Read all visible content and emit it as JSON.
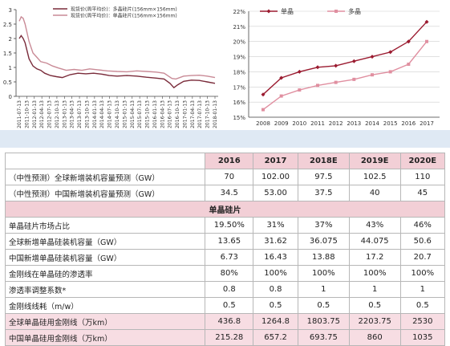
{
  "charts": [
    {
      "type": "line",
      "series": [
        {
          "name": "现货价(周平均价)：多晶硅片(156mm×156mm)",
          "color": "#7a2b3a"
        },
        {
          "name": "现货价(周平均价)：单晶硅片(156mm×156mm)",
          "color": "#c98a96"
        }
      ],
      "x": [
        "2011-07-13",
        "2011-10-13",
        "2012-01-13",
        "2012-04-13",
        "2012-07-13",
        "2012-10-13",
        "2013-01-13",
        "2013-04-13",
        "2013-07-13",
        "2013-10-13",
        "2014-01-13",
        "2014-04-13",
        "2014-07-13",
        "2014-10-13",
        "2015-01-13",
        "2015-04-13",
        "2015-07-13",
        "2015-10-13",
        "2016-01-13",
        "2016-04-13",
        "2016-07-13",
        "2016-10-13",
        "2017-01-13",
        "2017-04-13",
        "2017-07-13",
        "2017-10-13",
        "2018-01-13"
      ],
      "ylabels": [
        "0",
        "0.5",
        "1",
        "1.5",
        "2",
        "2.5",
        "3"
      ],
      "ylim": [
        0,
        3
      ]
    },
    {
      "type": "line",
      "x": [
        "2008",
        "2009",
        "2010",
        "2011",
        "2012",
        "2013",
        "2014",
        "2015",
        "2016",
        "2017"
      ],
      "series": [
        {
          "name": "单晶",
          "color": "#9b1b30",
          "values": [
            16.5,
            17.6,
            18.0,
            18.3,
            18.4,
            18.7,
            19.0,
            19.3,
            20.0,
            21.3
          ]
        },
        {
          "name": "多晶",
          "color": "#e08fa0",
          "values": [
            15.5,
            16.4,
            16.8,
            17.1,
            17.3,
            17.5,
            17.8,
            18.0,
            18.5,
            20.0
          ]
        }
      ],
      "ylabels": [
        "15%",
        "16%",
        "17%",
        "18%",
        "19%",
        "20%",
        "21%",
        "22%"
      ],
      "ylim": [
        15,
        22
      ]
    }
  ],
  "table": {
    "header": [
      "",
      "2016",
      "2017",
      "2018E",
      "2019E",
      "2020E"
    ],
    "rows": [
      {
        "label": "（中性预测）全球新增装机容量预测（GW）",
        "values": [
          "70",
          "102.00",
          "97.5",
          "102.5",
          "110"
        ],
        "style": "plain"
      },
      {
        "label": "（中性预测）中国新增装机容量预测（GW）",
        "values": [
          "34.5",
          "53.00",
          "37.5",
          "40",
          "45"
        ],
        "style": "plain"
      },
      {
        "label": "单晶硅片",
        "style": "section"
      },
      {
        "label": "单晶硅片市场占比",
        "values": [
          "19.50%",
          "31%",
          "37%",
          "43%",
          "46%"
        ],
        "style": "plain"
      },
      {
        "label": "全球新增单晶硅装机容量（GW）",
        "values": [
          "13.65",
          "31.62",
          "36.075",
          "44.075",
          "50.6"
        ],
        "style": "plain"
      },
      {
        "label": "中国新增单晶硅装机容量（GW）",
        "values": [
          "6.73",
          "16.43",
          "13.88",
          "17.2",
          "20.7"
        ],
        "style": "plain"
      },
      {
        "label": "金刚线在单晶硅的渗透率",
        "values": [
          "80%",
          "100%",
          "100%",
          "100%",
          "100%"
        ],
        "style": "plain"
      },
      {
        "label": "渗透率调整系数*",
        "values": [
          "0.8",
          "0.8",
          "1",
          "1",
          "1"
        ],
        "style": "plain"
      },
      {
        "label": "金刚线线耗（m/w）",
        "values": [
          "0.5",
          "0.5",
          "0.5",
          "0.5",
          "0.5"
        ],
        "style": "plain"
      },
      {
        "label": "全球单晶硅用金刚线（万km）",
        "values": [
          "436.8",
          "1264.8",
          "1803.75",
          "2203.75",
          "2530"
        ],
        "style": "pink"
      },
      {
        "label": "中国单晶硅用金刚线（万km）",
        "values": [
          "215.28",
          "657.2",
          "693.75",
          "860",
          "1035"
        ],
        "style": "pink"
      }
    ]
  }
}
